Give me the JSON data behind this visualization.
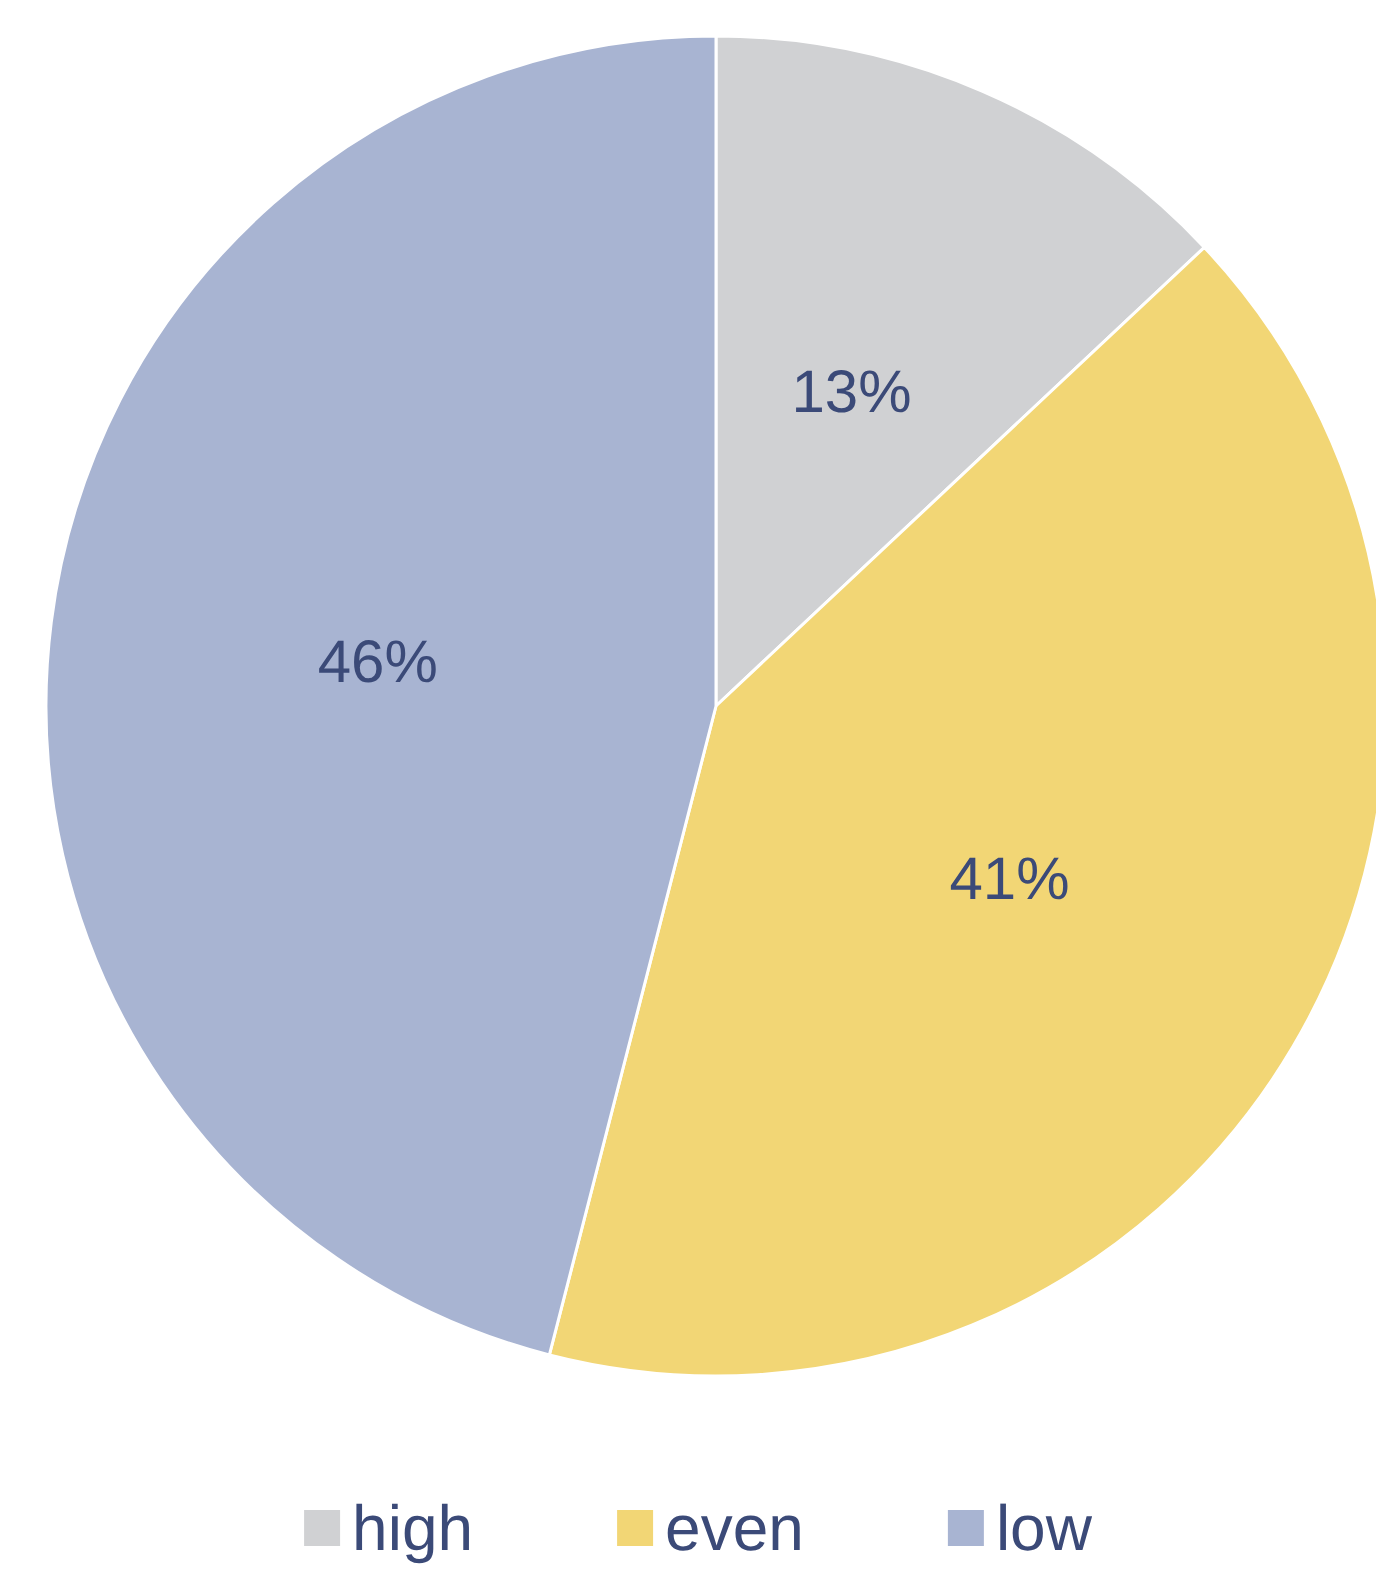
{
  "chart_data": {
    "type": "pie",
    "categories": [
      "high",
      "even",
      "low"
    ],
    "values": [
      13,
      41,
      46
    ],
    "colors": [
      "#d0d1d3",
      "#f2d675",
      "#a8b4d2"
    ],
    "value_labels": [
      "13%",
      "41%",
      "46%"
    ],
    "legend": "bottom"
  }
}
